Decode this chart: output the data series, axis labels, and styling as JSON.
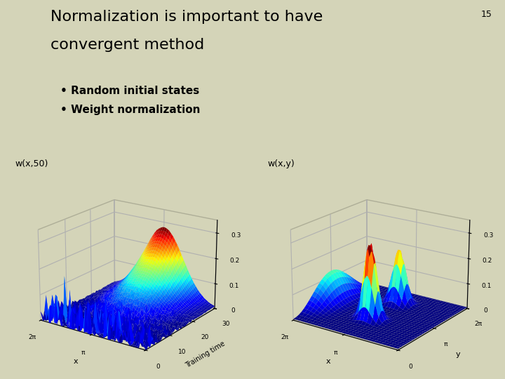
{
  "background_color": "#d4d4b8",
  "title_line1": "Normalization is important to have",
  "title_line2": "convergent method",
  "slide_number": "15",
  "bullet1": "• Random initial states",
  "bullet2": "• Weight normalization",
  "label_left": "w(x,50)",
  "label_right": "w(x,y)",
  "xlabel_left": "x",
  "xlabel_right": "x",
  "ylabel_left": "Training time",
  "ylabel_right": "y",
  "title_fontsize": 16,
  "bullet_fontsize": 11,
  "slide_num_fontsize": 9
}
